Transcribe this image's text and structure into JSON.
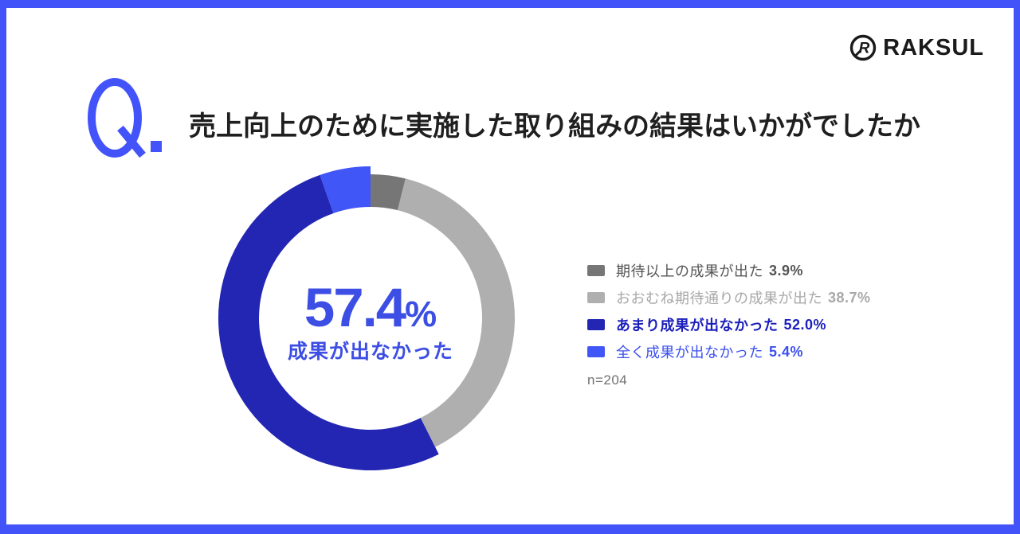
{
  "page": {
    "frame_color": "#4353FA",
    "background": "#FFFFFF"
  },
  "logo": {
    "brand": "RAKSUL",
    "mark_letter": "R",
    "color": "#1A1A1A"
  },
  "question": {
    "q_label": "Q.",
    "q_color": "#4353FA",
    "title": "売上向上のために実施した取り組みの結果はいかがでしたか",
    "title_color": "#1F1F1F"
  },
  "chart_data": {
    "type": "pie",
    "variant": "donut",
    "title": "売上向上のために実施した取り組みの結果はいかがでしたか",
    "start_angle_deg": 0,
    "direction": "clockwise",
    "inner_radius": 140,
    "outer_radius": 181,
    "outer_radius_emphasized": 191,
    "center_label": {
      "value": "57.4",
      "unit": "%",
      "caption": "成果が出なかった",
      "color": "#3C4EE3"
    },
    "sample_size_label": "n=204",
    "legend_position": "right",
    "categories": [
      "期待以上の成果が出た",
      "おおむね期待通りの成果が出た",
      "あまり成果が出なかった",
      "全く成果が出なかった"
    ],
    "values": [
      3.9,
      38.7,
      52.0,
      5.4
    ],
    "segments": [
      {
        "label": "期待以上の成果が出た",
        "value": 3.9,
        "value_label": "3.9%",
        "color": "#767676",
        "text_color": "#555555",
        "label_bold": false,
        "emphasized": false
      },
      {
        "label": "おおむね期待通りの成果が出た",
        "value": 38.7,
        "value_label": "38.7%",
        "color": "#AFAFAF",
        "text_color": "#A8A8A8",
        "label_bold": false,
        "emphasized": false
      },
      {
        "label": "あまり成果が出なかった",
        "value": 52.0,
        "value_label": "52.0%",
        "color": "#2326B3",
        "text_color": "#1C1FBC",
        "label_bold": true,
        "emphasized": true
      },
      {
        "label": "全く成果が出なかった",
        "value": 5.4,
        "value_label": "5.4%",
        "color": "#4156F6",
        "text_color": "#3B4FEF",
        "label_bold": false,
        "emphasized": true
      }
    ]
  }
}
